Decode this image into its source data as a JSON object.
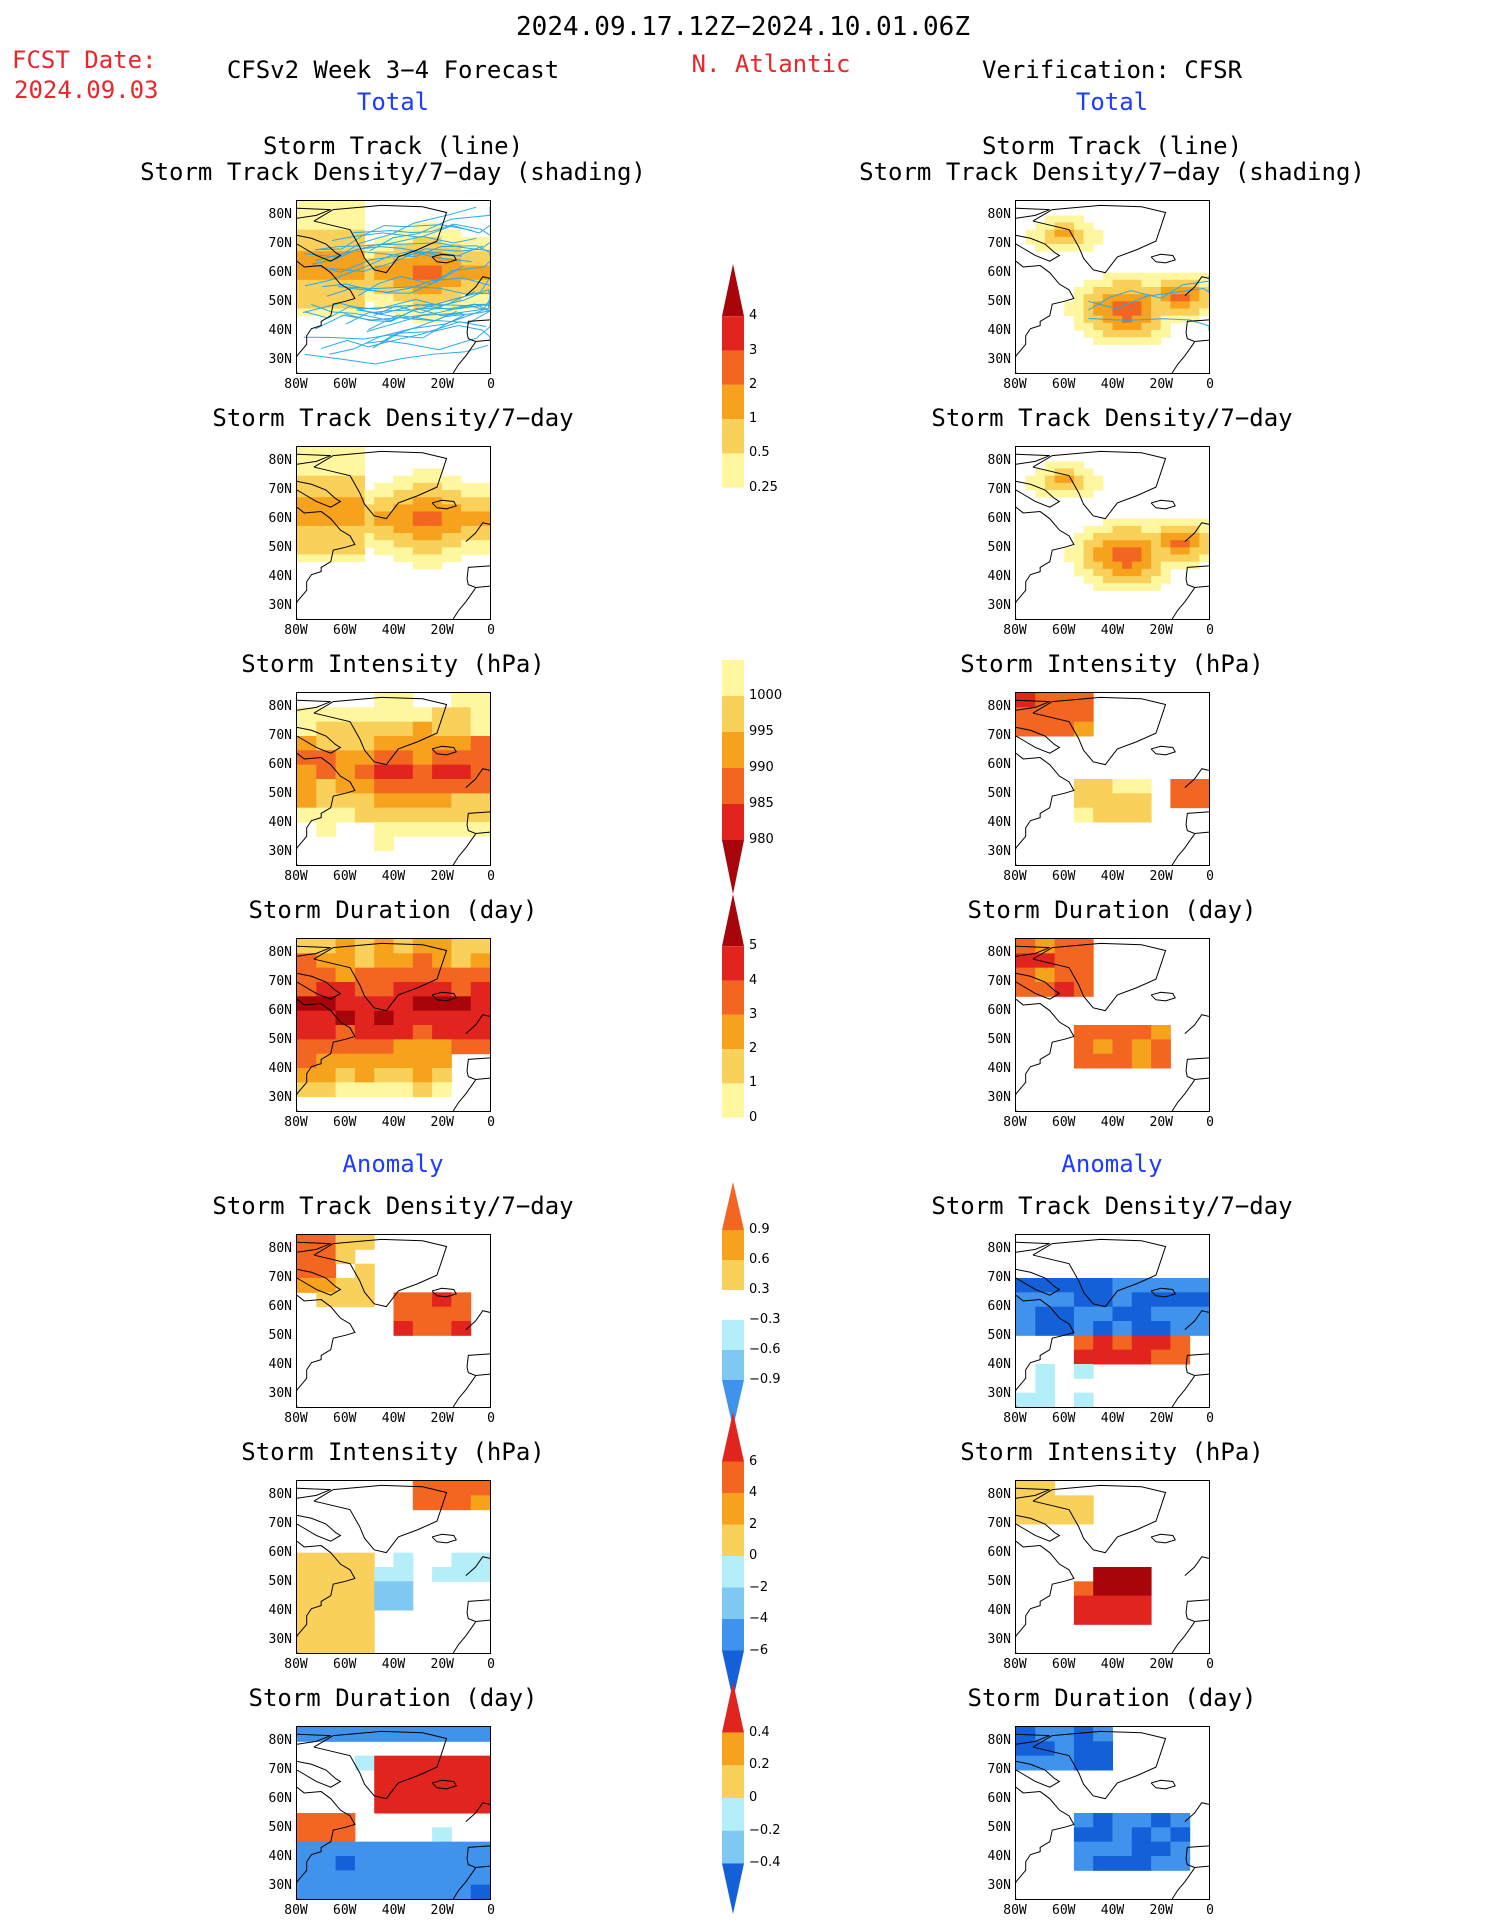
{
  "header": {
    "date_range": "2024.09.17.12Z−2024.10.01.06Z",
    "fcst_label": "FCST Date:",
    "fcst_date": "2024.09.03",
    "model_title": "CFSv2 Week 3−4 Forecast",
    "region": "N. Atlantic",
    "verification": "Verification: CFSR"
  },
  "sections": {
    "total": "Total",
    "anomaly": "Anomaly"
  },
  "panel_titles": {
    "track_line": "Storm Track (line)",
    "track_shading": "Storm Track Density/7−day (shading)",
    "density": "Storm Track Density/7−day",
    "intensity": "Storm Intensity (hPa)",
    "duration": "Storm Duration (day)"
  },
  "axes": {
    "lat_ticks": [
      "80N",
      "70N",
      "60N",
      "50N",
      "40N",
      "30N"
    ],
    "lon_ticks": [
      "80W",
      "60W",
      "40W",
      "20W",
      "0"
    ]
  },
  "colorbars": {
    "density_total": [
      "4",
      "3",
      "2",
      "1",
      "0.5",
      "0.25"
    ],
    "intensity_total": [
      "1000",
      "995",
      "990",
      "985",
      "980"
    ],
    "duration_total": [
      "5",
      "4",
      "3",
      "2",
      "1",
      "0"
    ],
    "density_anom": [
      "0.9",
      "0.6",
      "0.3",
      "−0.3",
      "−0.6",
      "−0.9"
    ],
    "intensity_anom": [
      "6",
      "4",
      "2",
      "0",
      "−2",
      "−4",
      "−6"
    ],
    "duration_anom": [
      "0.4",
      "0.2",
      "0",
      "−0.2",
      "−0.4"
    ]
  },
  "colors": {
    "warm": [
      "#fff7a0",
      "#f9d05a",
      "#f7a21c",
      "#f26622",
      "#e2241f",
      "#a8050b"
    ],
    "cool": [
      "#b4eef8",
      "#7ec8f2",
      "#3f93ec",
      "#1460d8"
    ],
    "track_line": "#2aa9ee",
    "header_red": "#e8262b",
    "header_blue": "#1e3cff"
  }
}
